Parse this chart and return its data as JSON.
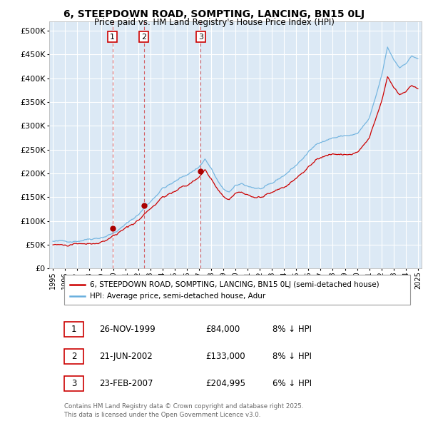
{
  "title": "6, STEEPDOWN ROAD, SOMPTING, LANCING, BN15 0LJ",
  "subtitle": "Price paid vs. HM Land Registry's House Price Index (HPI)",
  "ylabel_ticks": [
    "£0",
    "£50K",
    "£100K",
    "£150K",
    "£200K",
    "£250K",
    "£300K",
    "£350K",
    "£400K",
    "£450K",
    "£500K"
  ],
  "ytick_values": [
    0,
    50000,
    100000,
    150000,
    200000,
    250000,
    300000,
    350000,
    400000,
    450000,
    500000
  ],
  "ylim": [
    0,
    520000
  ],
  "xlim_start": 1994.7,
  "xlim_end": 2025.3,
  "background_color": "#ffffff",
  "plot_bg_color": "#dce9f5",
  "grid_color": "#ffffff",
  "legend_label_red": "6, STEEPDOWN ROAD, SOMPTING, LANCING, BN15 0LJ (semi-detached house)",
  "legend_label_blue": "HPI: Average price, semi-detached house, Adur",
  "sale_dates": [
    1999.9,
    2002.47,
    2007.15
  ],
  "sale_prices": [
    84000,
    133000,
    204995
  ],
  "sale_labels": [
    "1",
    "2",
    "3"
  ],
  "footer_line1": "Contains HM Land Registry data © Crown copyright and database right 2025.",
  "footer_line2": "This data is licensed under the Open Government Licence v3.0.",
  "table_rows": [
    {
      "label": "1",
      "date": "26-NOV-1999",
      "price": "£84,000",
      "note": "8% ↓ HPI"
    },
    {
      "label": "2",
      "date": "21-JUN-2002",
      "price": "£133,000",
      "note": "8% ↓ HPI"
    },
    {
      "label": "3",
      "date": "23-FEB-2007",
      "price": "£204,995",
      "note": "6% ↓ HPI"
    }
  ],
  "red_color": "#cc0000",
  "blue_color": "#6ab0de",
  "marker_color": "#aa0000"
}
